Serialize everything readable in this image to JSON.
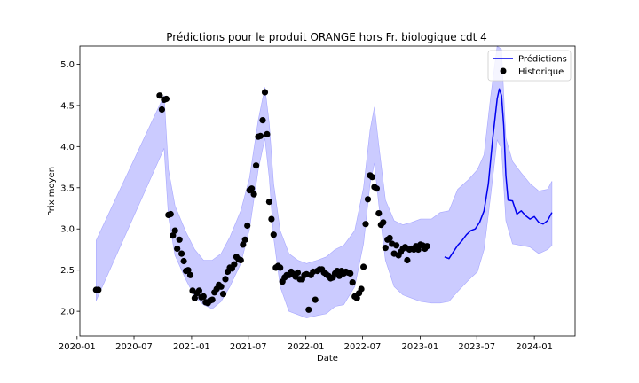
{
  "chart_data": {
    "type": "line",
    "title": "Prédictions pour le produit ORANGE hors Fr. biologique cdt 4",
    "xlabel": "Date",
    "ylabel": "Prix moyen",
    "x_ticks": [
      "2020-01",
      "2020-07",
      "2021-01",
      "2021-07",
      "2022-01",
      "2022-07",
      "2023-01",
      "2023-07",
      "2024-01"
    ],
    "y_ticks": [
      "2.0",
      "2.5",
      "3.0",
      "3.5",
      "4.0",
      "4.5",
      "5.0"
    ],
    "xlim": [
      "2020-01-10",
      "2024-05-10"
    ],
    "ylim": [
      1.7,
      5.22
    ],
    "grid": false,
    "legend_position": "top-right",
    "colors": {
      "prediction": "#0000ee",
      "band": "#c8c8ff",
      "band_edge": "#a8a8ff",
      "history": "#000000"
    },
    "legend": [
      {
        "label": "Prédictions",
        "kind": "line",
        "color": "#0000ee"
      },
      {
        "label": "Historique",
        "kind": "marker",
        "color": "#000000"
      }
    ],
    "series": [
      {
        "name": "Prédictions",
        "kind": "line",
        "points": [
          [
            "2023-03-20",
            2.66
          ],
          [
            "2023-04-03",
            2.64
          ],
          [
            "2023-04-17",
            2.72
          ],
          [
            "2023-05-01",
            2.8
          ],
          [
            "2023-05-15",
            2.86
          ],
          [
            "2023-05-29",
            2.93
          ],
          [
            "2023-06-12",
            2.98
          ],
          [
            "2023-06-26",
            3.0
          ],
          [
            "2023-07-10",
            3.08
          ],
          [
            "2023-07-24",
            3.22
          ],
          [
            "2023-08-07",
            3.55
          ],
          [
            "2023-08-21",
            4.1
          ],
          [
            "2023-09-04",
            4.58
          ],
          [
            "2023-09-11",
            4.7
          ],
          [
            "2023-09-18",
            4.62
          ],
          [
            "2023-09-25",
            4.25
          ],
          [
            "2023-10-02",
            3.65
          ],
          [
            "2023-10-09",
            3.35
          ],
          [
            "2023-10-23",
            3.34
          ],
          [
            "2023-11-06",
            3.18
          ],
          [
            "2023-11-20",
            3.22
          ],
          [
            "2023-12-04",
            3.16
          ],
          [
            "2023-12-18",
            3.12
          ],
          [
            "2024-01-01",
            3.15
          ],
          [
            "2024-01-15",
            3.08
          ],
          [
            "2024-01-29",
            3.06
          ],
          [
            "2024-02-12",
            3.1
          ],
          [
            "2024-02-26",
            3.2
          ]
        ]
      },
      {
        "name": "Historique",
        "kind": "scatter",
        "points": [
          [
            "2020-03-02",
            2.26
          ],
          [
            "2020-03-09",
            2.26
          ],
          [
            "2020-09-21",
            4.62
          ],
          [
            "2020-09-28",
            4.45
          ],
          [
            "2020-10-05",
            4.57
          ],
          [
            "2020-10-12",
            4.58
          ],
          [
            "2020-10-19",
            3.17
          ],
          [
            "2020-10-26",
            3.18
          ],
          [
            "2020-11-02",
            2.92
          ],
          [
            "2020-11-09",
            2.98
          ],
          [
            "2020-11-16",
            2.76
          ],
          [
            "2020-11-23",
            2.87
          ],
          [
            "2020-11-30",
            2.7
          ],
          [
            "2020-12-07",
            2.61
          ],
          [
            "2020-12-14",
            2.49
          ],
          [
            "2020-12-21",
            2.5
          ],
          [
            "2020-12-28",
            2.44
          ],
          [
            "2021-01-04",
            2.25
          ],
          [
            "2021-01-11",
            2.16
          ],
          [
            "2021-01-18",
            2.22
          ],
          [
            "2021-01-25",
            2.25
          ],
          [
            "2021-02-01",
            2.17
          ],
          [
            "2021-02-08",
            2.18
          ],
          [
            "2021-02-15",
            2.11
          ],
          [
            "2021-02-22",
            2.1
          ],
          [
            "2021-03-01",
            2.13
          ],
          [
            "2021-03-08",
            2.14
          ],
          [
            "2021-03-15",
            2.23
          ],
          [
            "2021-03-22",
            2.27
          ],
          [
            "2021-03-29",
            2.32
          ],
          [
            "2021-04-05",
            2.3
          ],
          [
            "2021-04-12",
            2.21
          ],
          [
            "2021-04-19",
            2.39
          ],
          [
            "2021-04-26",
            2.48
          ],
          [
            "2021-05-03",
            2.53
          ],
          [
            "2021-05-10",
            2.52
          ],
          [
            "2021-05-17",
            2.57
          ],
          [
            "2021-05-24",
            2.66
          ],
          [
            "2021-05-31",
            2.63
          ],
          [
            "2021-06-07",
            2.62
          ],
          [
            "2021-06-14",
            2.81
          ],
          [
            "2021-06-21",
            2.87
          ],
          [
            "2021-06-28",
            3.04
          ],
          [
            "2021-07-05",
            3.47
          ],
          [
            "2021-07-12",
            3.49
          ],
          [
            "2021-07-19",
            3.42
          ],
          [
            "2021-07-26",
            3.77
          ],
          [
            "2021-08-02",
            4.12
          ],
          [
            "2021-08-09",
            4.13
          ],
          [
            "2021-08-16",
            4.32
          ],
          [
            "2021-08-23",
            4.66
          ],
          [
            "2021-08-30",
            4.15
          ],
          [
            "2021-09-06",
            3.33
          ],
          [
            "2021-09-13",
            3.12
          ],
          [
            "2021-09-20",
            2.93
          ],
          [
            "2021-09-27",
            2.53
          ],
          [
            "2021-10-04",
            2.55
          ],
          [
            "2021-10-11",
            2.53
          ],
          [
            "2021-10-18",
            2.36
          ],
          [
            "2021-10-25",
            2.41
          ],
          [
            "2021-11-01",
            2.44
          ],
          [
            "2021-11-08",
            2.44
          ],
          [
            "2021-11-15",
            2.48
          ],
          [
            "2021-11-22",
            2.45
          ],
          [
            "2021-11-29",
            2.42
          ],
          [
            "2021-12-06",
            2.47
          ],
          [
            "2021-12-13",
            2.39
          ],
          [
            "2021-12-20",
            2.39
          ],
          [
            "2021-12-27",
            2.44
          ],
          [
            "2022-01-03",
            2.45
          ],
          [
            "2022-01-10",
            2.02
          ],
          [
            "2022-01-17",
            2.44
          ],
          [
            "2022-01-24",
            2.48
          ],
          [
            "2022-01-31",
            2.14
          ],
          [
            "2022-02-07",
            2.49
          ],
          [
            "2022-02-14",
            2.51
          ],
          [
            "2022-02-21",
            2.51
          ],
          [
            "2022-02-28",
            2.47
          ],
          [
            "2022-03-07",
            2.45
          ],
          [
            "2022-03-14",
            2.43
          ],
          [
            "2022-03-21",
            2.4
          ],
          [
            "2022-03-28",
            2.41
          ],
          [
            "2022-04-04",
            2.46
          ],
          [
            "2022-04-11",
            2.49
          ],
          [
            "2022-04-18",
            2.43
          ],
          [
            "2022-04-25",
            2.49
          ],
          [
            "2022-05-02",
            2.46
          ],
          [
            "2022-05-09",
            2.48
          ],
          [
            "2022-05-16",
            2.47
          ],
          [
            "2022-05-23",
            2.46
          ],
          [
            "2022-05-30",
            2.35
          ],
          [
            "2022-06-06",
            2.18
          ],
          [
            "2022-06-13",
            2.16
          ],
          [
            "2022-06-20",
            2.22
          ],
          [
            "2022-06-27",
            2.27
          ],
          [
            "2022-07-04",
            2.54
          ],
          [
            "2022-07-11",
            3.06
          ],
          [
            "2022-07-18",
            3.36
          ],
          [
            "2022-07-25",
            3.65
          ],
          [
            "2022-08-01",
            3.63
          ],
          [
            "2022-08-08",
            3.51
          ],
          [
            "2022-08-15",
            3.49
          ],
          [
            "2022-08-22",
            3.19
          ],
          [
            "2022-08-29",
            3.05
          ],
          [
            "2022-09-05",
            3.08
          ],
          [
            "2022-09-12",
            2.77
          ],
          [
            "2022-09-19",
            2.87
          ],
          [
            "2022-09-26",
            2.89
          ],
          [
            "2022-10-03",
            2.82
          ],
          [
            "2022-10-10",
            2.7
          ],
          [
            "2022-10-17",
            2.8
          ],
          [
            "2022-10-24",
            2.68
          ],
          [
            "2022-10-31",
            2.72
          ],
          [
            "2022-11-07",
            2.76
          ],
          [
            "2022-11-14",
            2.78
          ],
          [
            "2022-11-21",
            2.62
          ],
          [
            "2022-11-28",
            2.75
          ],
          [
            "2022-12-05",
            2.76
          ],
          [
            "2022-12-12",
            2.75
          ],
          [
            "2022-12-19",
            2.79
          ],
          [
            "2022-12-26",
            2.75
          ],
          [
            "2023-01-02",
            2.81
          ],
          [
            "2023-01-09",
            2.8
          ],
          [
            "2023-01-16",
            2.76
          ],
          [
            "2023-01-23",
            2.79
          ]
        ]
      }
    ],
    "confidence_band": [
      [
        "2020-03-02",
        2.13,
        2.86
      ],
      [
        "2020-10-05",
        3.98,
        4.62
      ],
      [
        "2020-10-19",
        3.15,
        3.72
      ],
      [
        "2020-11-09",
        2.68,
        3.28
      ],
      [
        "2020-12-14",
        2.38,
        2.96
      ],
      [
        "2021-01-11",
        2.18,
        2.75
      ],
      [
        "2021-02-08",
        2.08,
        2.62
      ],
      [
        "2021-03-08",
        2.03,
        2.62
      ],
      [
        "2021-04-05",
        2.12,
        2.7
      ],
      [
        "2021-05-03",
        2.3,
        2.9
      ],
      [
        "2021-06-07",
        2.58,
        3.22
      ],
      [
        "2021-07-05",
        3.0,
        3.62
      ],
      [
        "2021-08-02",
        3.72,
        4.32
      ],
      [
        "2021-08-23",
        4.1,
        4.72
      ],
      [
        "2021-09-06",
        3.62,
        4.28
      ],
      [
        "2021-09-20",
        2.9,
        3.55
      ],
      [
        "2021-10-11",
        2.3,
        2.98
      ],
      [
        "2021-11-08",
        2.0,
        2.7
      ],
      [
        "2021-12-06",
        1.96,
        2.62
      ],
      [
        "2022-01-03",
        1.92,
        2.58
      ],
      [
        "2022-02-07",
        1.95,
        2.62
      ],
      [
        "2022-03-07",
        1.97,
        2.66
      ],
      [
        "2022-04-04",
        2.06,
        2.75
      ],
      [
        "2022-05-02",
        2.08,
        2.8
      ],
      [
        "2022-06-06",
        2.3,
        2.98
      ],
      [
        "2022-07-04",
        2.82,
        3.5
      ],
      [
        "2022-07-25",
        3.55,
        4.2
      ],
      [
        "2022-08-08",
        3.8,
        4.48
      ],
      [
        "2022-08-22",
        3.3,
        4.02
      ],
      [
        "2022-09-12",
        2.62,
        3.35
      ],
      [
        "2022-10-10",
        2.3,
        3.1
      ],
      [
        "2022-11-07",
        2.2,
        3.05
      ],
      [
        "2022-12-05",
        2.16,
        3.08
      ],
      [
        "2023-01-02",
        2.12,
        3.12
      ],
      [
        "2023-02-06",
        2.1,
        3.12
      ],
      [
        "2023-03-06",
        2.1,
        3.2
      ],
      [
        "2023-04-03",
        2.12,
        3.22
      ],
      [
        "2023-05-01",
        2.24,
        3.48
      ],
      [
        "2023-06-05",
        2.38,
        3.6
      ],
      [
        "2023-07-03",
        2.48,
        3.72
      ],
      [
        "2023-07-24",
        2.75,
        3.9
      ],
      [
        "2023-08-14",
        3.4,
        4.6
      ],
      [
        "2023-09-04",
        4.08,
        5.22
      ],
      [
        "2023-09-18",
        3.98,
        5.18
      ],
      [
        "2023-10-02",
        3.1,
        4.1
      ],
      [
        "2023-10-23",
        2.82,
        3.82
      ],
      [
        "2023-11-20",
        2.8,
        3.68
      ],
      [
        "2023-12-18",
        2.78,
        3.55
      ],
      [
        "2024-01-15",
        2.7,
        3.46
      ],
      [
        "2024-02-12",
        2.75,
        3.48
      ],
      [
        "2024-02-26",
        2.8,
        3.58
      ]
    ]
  }
}
